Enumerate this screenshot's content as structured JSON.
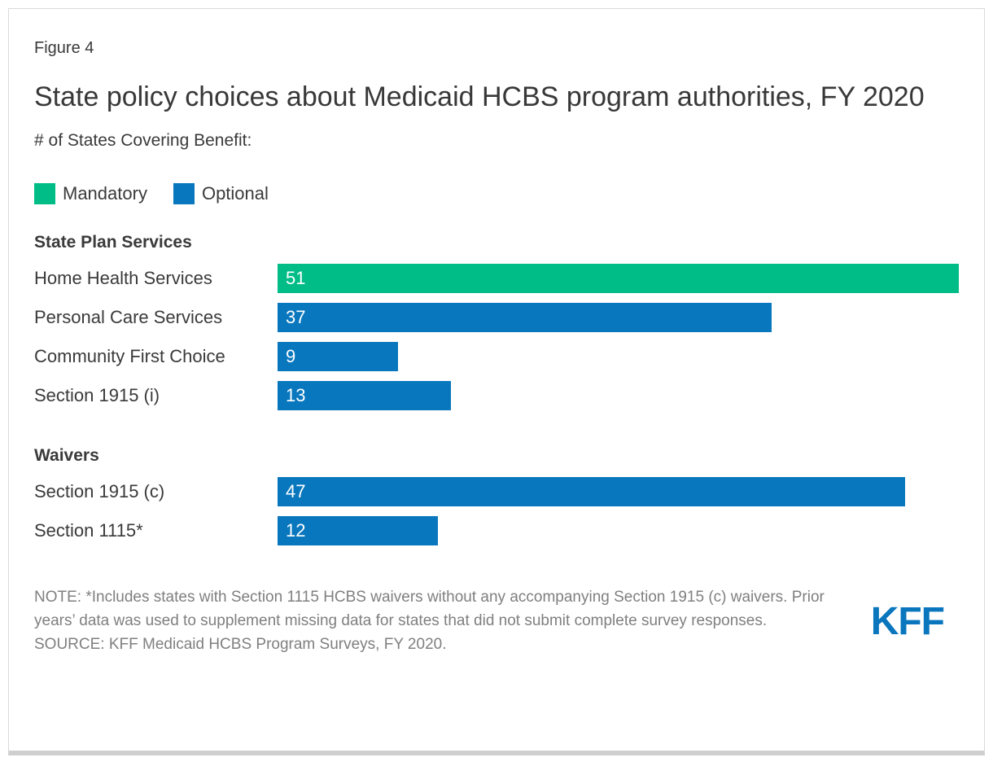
{
  "figure_label": "Figure 4",
  "title": "State policy choices about Medicaid HCBS program authorities, FY 2020",
  "subtitle": "# of States Covering Benefit:",
  "legend": [
    {
      "label": "Mandatory",
      "color": "#00BC87"
    },
    {
      "label": "Optional",
      "color": "#0877BE"
    }
  ],
  "chart_data": {
    "type": "bar",
    "orientation": "horizontal",
    "title": "State policy choices about Medicaid HCBS program authorities, FY 2020",
    "value_axis_label": "# of States Covering Benefit",
    "value_range": [
      0,
      51
    ],
    "grid": false,
    "legend_position": "top",
    "groups": [
      {
        "heading": "State Plan Services",
        "rows": [
          {
            "label": "Home Health Services",
            "value": 51,
            "series": "Mandatory"
          },
          {
            "label": "Personal Care Services",
            "value": 37,
            "series": "Optional"
          },
          {
            "label": "Community First Choice",
            "value": 9,
            "series": "Optional"
          },
          {
            "label": "Section 1915 (i)",
            "value": 13,
            "series": "Optional"
          }
        ]
      },
      {
        "heading": "Waivers",
        "rows": [
          {
            "label": "Section 1915 (c)",
            "value": 47,
            "series": "Optional"
          },
          {
            "label": "Section 1115*",
            "value": 12,
            "series": "Optional"
          }
        ]
      }
    ]
  },
  "note": "NOTE: *Includes states with Section 1115 HCBS waivers without any accompanying Section 1915 (c) waivers. Prior years’ data was used to supplement missing data for states that did not submit complete survey responses.",
  "source": "SOURCE: KFF Medicaid HCBS Program Surveys, FY 2020.",
  "logo_text": "KFF",
  "colors": {
    "logo": "#0976BD"
  }
}
